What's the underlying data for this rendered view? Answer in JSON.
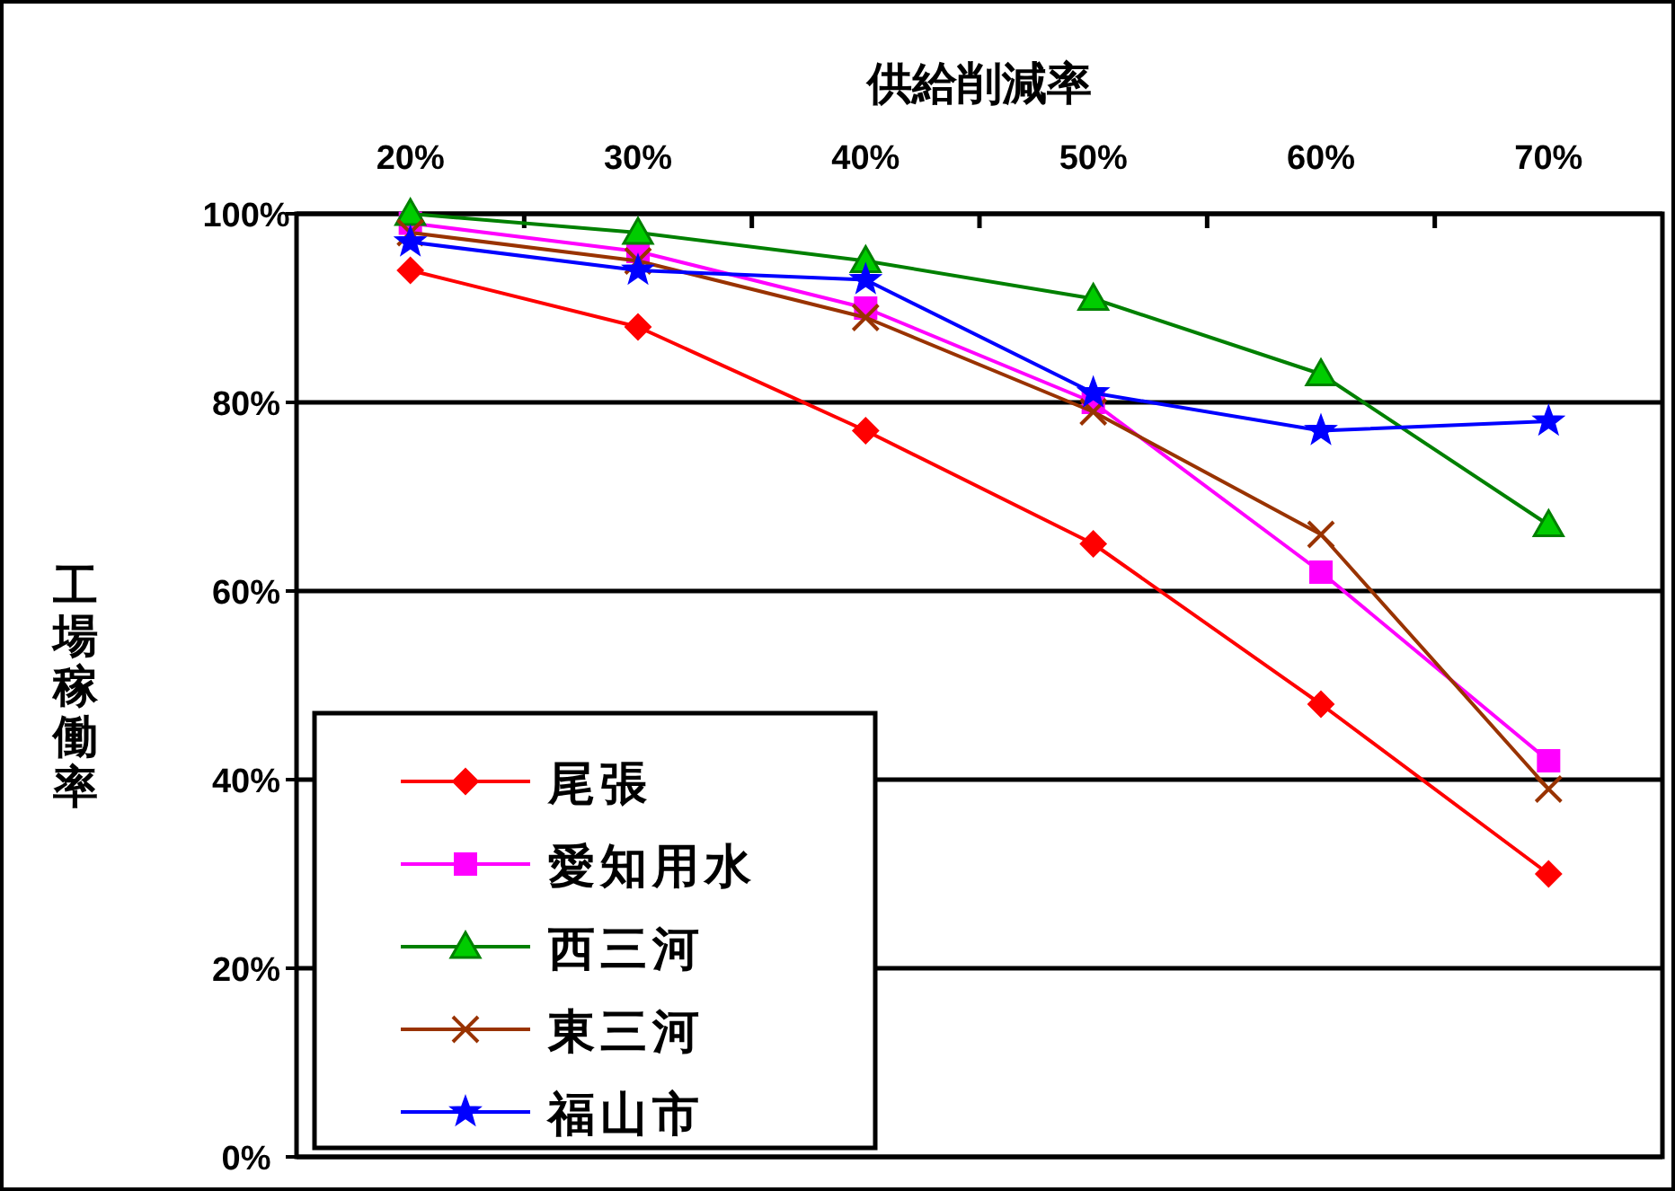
{
  "chart_data": {
    "type": "line",
    "xlabel": "供給削減率",
    "ylabel": "工場稼働率",
    "categories": [
      "20%",
      "30%",
      "40%",
      "50%",
      "60%",
      "70%"
    ],
    "ylim": [
      0,
      100
    ],
    "yticks": [
      {
        "value": 0,
        "label": "0%"
      },
      {
        "value": 20,
        "label": "20%"
      },
      {
        "value": 40,
        "label": "40%"
      },
      {
        "value": 60,
        "label": "60%"
      },
      {
        "value": 80,
        "label": "80%"
      },
      {
        "value": 100,
        "label": "100%"
      }
    ],
    "grid": "y",
    "legend": "bottom left",
    "series": [
      {
        "name": "尾張",
        "color": "#ff0000",
        "marker": "diamond",
        "values": [
          94,
          88,
          77,
          65,
          48,
          30
        ]
      },
      {
        "name": "愛知用水",
        "color": "#ff00ff",
        "marker": "square",
        "values": [
          99,
          96,
          90,
          80,
          62,
          42
        ]
      },
      {
        "name": "西三河",
        "color": "#008000",
        "marker": "triangle",
        "values": [
          100,
          98,
          95,
          91,
          83,
          67
        ]
      },
      {
        "name": "東三河",
        "color": "#993300",
        "marker": "cross",
        "values": [
          98,
          95,
          89,
          79,
          66,
          39
        ]
      },
      {
        "name": "福山市",
        "color": "#0000ff",
        "marker": "star",
        "values": [
          97,
          94,
          93,
          81,
          77,
          78
        ]
      }
    ]
  }
}
